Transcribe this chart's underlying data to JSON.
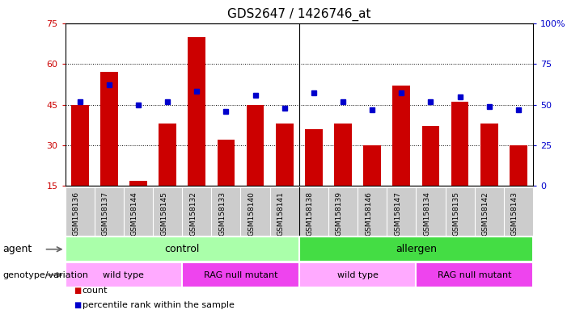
{
  "title": "GDS2647 / 1426746_at",
  "samples": [
    "GSM158136",
    "GSM158137",
    "GSM158144",
    "GSM158145",
    "GSM158132",
    "GSM158133",
    "GSM158140",
    "GSM158141",
    "GSM158138",
    "GSM158139",
    "GSM158146",
    "GSM158147",
    "GSM158134",
    "GSM158135",
    "GSM158142",
    "GSM158143"
  ],
  "counts": [
    45,
    57,
    17,
    38,
    70,
    32,
    45,
    38,
    36,
    38,
    30,
    52,
    37,
    46,
    38,
    30
  ],
  "percentiles": [
    52,
    62,
    50,
    52,
    58,
    46,
    56,
    48,
    57,
    52,
    47,
    57,
    52,
    55,
    49,
    47
  ],
  "ylim_left": [
    15,
    75
  ],
  "ylim_right": [
    0,
    100
  ],
  "yticks_left": [
    15,
    30,
    45,
    60,
    75
  ],
  "yticks_right": [
    0,
    25,
    50,
    75,
    100
  ],
  "bar_color": "#cc0000",
  "dot_color": "#0000cc",
  "agent_groups": [
    {
      "text": "control",
      "start": 0,
      "end": 8,
      "color": "#aaffaa"
    },
    {
      "text": "allergen",
      "start": 8,
      "end": 16,
      "color": "#44dd44"
    }
  ],
  "genotype_groups": [
    {
      "text": "wild type",
      "start": 0,
      "end": 4,
      "color": "#ffaaff"
    },
    {
      "text": "RAG null mutant",
      "start": 4,
      "end": 8,
      "color": "#ee44ee"
    },
    {
      "text": "wild type",
      "start": 8,
      "end": 12,
      "color": "#ffaaff"
    },
    {
      "text": "RAG null mutant",
      "start": 12,
      "end": 16,
      "color": "#ee44ee"
    }
  ],
  "tick_color_left": "#cc0000",
  "tick_color_right": "#0000cc",
  "separator_col": 8,
  "sample_bg": "#cccccc"
}
